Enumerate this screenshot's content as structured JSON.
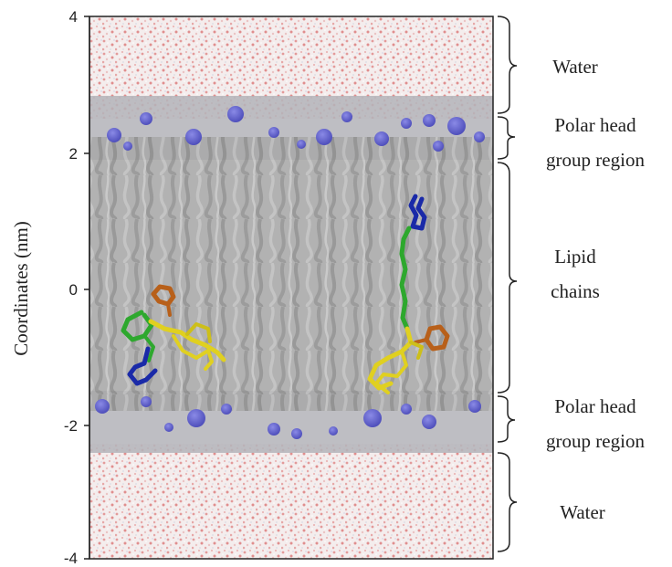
{
  "axis": {
    "ylabel": "Coordinates (nm)",
    "ticks": [
      "4",
      "2",
      "0",
      "-2",
      "-4"
    ]
  },
  "regions": [
    {
      "lines": [
        "Water"
      ]
    },
    {
      "lines": [
        "Polar head",
        "group region"
      ]
    },
    {
      "lines": [
        "Lipid",
        "chains"
      ]
    },
    {
      "lines": [
        "Polar head",
        "group region"
      ]
    },
    {
      "lines": [
        "Water"
      ]
    }
  ],
  "colors": {
    "water_red": "#e8a0a0",
    "membrane_gray": "#a8a8a8",
    "head_blue": "#5a5ad0",
    "mol_green": "#2ea82e",
    "mol_blue": "#1a2aa8",
    "mol_orange": "#b8601a",
    "mol_yellow": "#e0d020"
  }
}
